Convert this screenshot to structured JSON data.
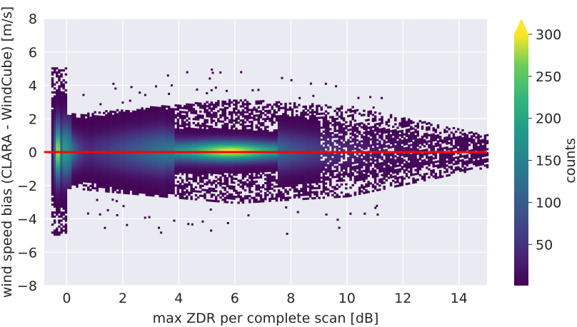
{
  "chart_data": {
    "type": "heatmap",
    "subtype": "2d-histogram",
    "title": "",
    "xlabel": "max ZDR per complete scan [dB]",
    "ylabel": "wind speed bias (CLARA - WindCube) [m/s]",
    "xlim": [
      -0.8,
      15
    ],
    "ylim": [
      -8,
      8
    ],
    "x_ticks": [
      "0",
      "2",
      "4",
      "6",
      "8",
      "10",
      "12",
      "14"
    ],
    "y_ticks": [
      "8",
      "6",
      "4",
      "2",
      "0",
      "−2",
      "−4",
      "−6",
      "−8"
    ],
    "grid": true,
    "background": "#eaeaf2",
    "reference_line": {
      "y": 0,
      "color": "#ff0000"
    },
    "colormap": "viridis",
    "colorbar": {
      "label": "counts",
      "ticks": [
        "50",
        "100",
        "150",
        "200",
        "250",
        "300"
      ],
      "range": [
        1,
        300
      ],
      "extend": "max"
    },
    "bins": {
      "x_min": -0.55,
      "x_max": 15,
      "x_width": 0.08,
      "y_width": 0.12
    },
    "description_values": {
      "spike_x": -0.35,
      "spike_peak_count": 300,
      "core_x_range": [
        3.8,
        7.5
      ],
      "core_peak_count": 300,
      "core_y_spread": 0.35
    }
  }
}
